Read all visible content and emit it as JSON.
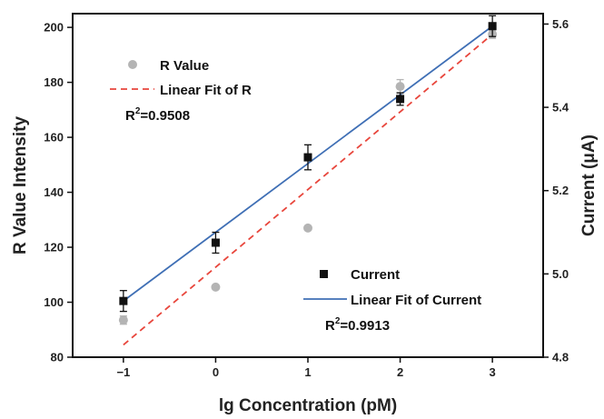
{
  "chart_data": {
    "type": "scatter",
    "xlabel": "lg Concentration (pM)",
    "ylabel_left": "R Value Intensity",
    "ylabel_right": "Current (μA)",
    "xlim": [
      -1.55,
      3.55
    ],
    "ylim_left": [
      80,
      205
    ],
    "ylim_right": [
      4.8,
      5.625
    ],
    "x_ticks": [
      "-1",
      "0",
      "1",
      "2",
      "3"
    ],
    "x_tick_values": [
      -1,
      0,
      1,
      2,
      3
    ],
    "y_left_ticks": [
      "80",
      "100",
      "120",
      "140",
      "160",
      "180",
      "200"
    ],
    "y_left_tick_values": [
      80,
      100,
      120,
      140,
      160,
      180,
      200
    ],
    "y_right_ticks": [
      "4.8",
      "5.0",
      "5.2",
      "5.4",
      "5.6"
    ],
    "y_right_tick_values": [
      4.8,
      5.0,
      5.2,
      5.4,
      5.6
    ],
    "grid": false,
    "series": [
      {
        "name": "R Value",
        "axis": "left",
        "marker": "circle",
        "color": "#b4b4b4",
        "x": [
          -1,
          0,
          1,
          2,
          3
        ],
        "y": [
          93.5,
          105.5,
          127,
          178.5,
          197.5
        ],
        "error": [
          1.5,
          0,
          0,
          2.5,
          1.5
        ]
      },
      {
        "name": "Current",
        "axis": "right",
        "marker": "square",
        "color": "#111111",
        "x": [
          -1,
          0,
          1,
          2,
          3
        ],
        "y": [
          4.935,
          5.075,
          5.28,
          5.42,
          5.595
        ],
        "error": [
          0.025,
          0.025,
          0.03,
          0.015,
          0.025
        ]
      },
      {
        "name": "Linear Fit of R",
        "axis": "left",
        "style": "dashed",
        "color": "#e8463c",
        "x": [
          -1,
          3
        ],
        "y": [
          84.5,
          197.5
        ]
      },
      {
        "name": "Linear Fit of Current",
        "axis": "right",
        "style": "solid",
        "color": "#3f6fb5",
        "x": [
          -1,
          3
        ],
        "y": [
          4.935,
          5.595
        ]
      }
    ],
    "annotations": {
      "r2_r_prefix": "R",
      "r2_r_sup": "2",
      "r2_r_value": "=0.9508",
      "r2_current_prefix": "R",
      "r2_current_sup": "2",
      "r2_current_value": "=0.9913"
    },
    "legend": {
      "r_value": "R Value",
      "r_fit": "Linear Fit of R",
      "current": "Current",
      "current_fit": "Linear Fit of Current"
    }
  }
}
